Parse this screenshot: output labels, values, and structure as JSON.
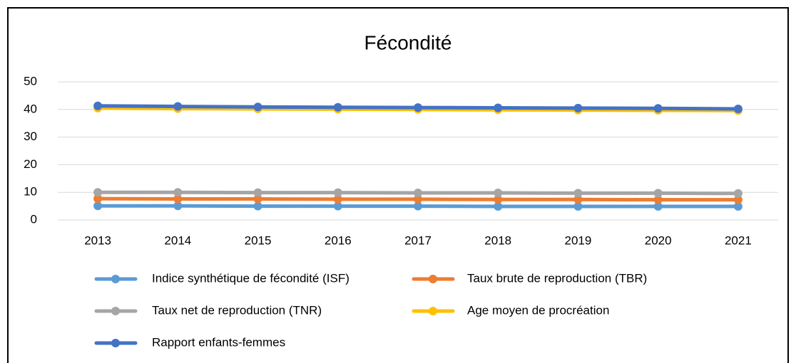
{
  "chart_data": {
    "type": "line",
    "title": "Fécondité",
    "categories": [
      "2013",
      "2014",
      "2015",
      "2016",
      "2017",
      "2018",
      "2019",
      "2020",
      "2021"
    ],
    "series": [
      {
        "name": "Indice synthétique de fécondité (ISF)",
        "color": "#5b9bd5",
        "values": [
          5.1,
          5.1,
          5.0,
          5.0,
          5.0,
          4.9,
          4.9,
          4.9,
          4.9
        ]
      },
      {
        "name": "Taux brute de reproduction (TBR)",
        "color": "#ed7d31",
        "values": [
          7.7,
          7.6,
          7.6,
          7.5,
          7.5,
          7.4,
          7.4,
          7.3,
          7.3
        ]
      },
      {
        "name": "Taux net de reproduction (TNR)",
        "color": "#a5a5a5",
        "values": [
          10.0,
          10.0,
          9.9,
          9.9,
          9.8,
          9.8,
          9.7,
          9.7,
          9.6
        ]
      },
      {
        "name": "Age moyen de procréation",
        "color": "#ffc000",
        "values": [
          40.5,
          40.3,
          40.2,
          40.1,
          40.0,
          39.9,
          39.8,
          39.7,
          39.6
        ]
      },
      {
        "name": "Rapport enfants-femmes",
        "color": "#4472c4",
        "values": [
          41.3,
          41.1,
          40.9,
          40.8,
          40.7,
          40.6,
          40.5,
          40.4,
          40.2
        ]
      }
    ],
    "ylim": [
      0,
      50
    ],
    "yticks": [
      0,
      10,
      20,
      30,
      40,
      50
    ],
    "grid": true,
    "legend": "bottom"
  }
}
